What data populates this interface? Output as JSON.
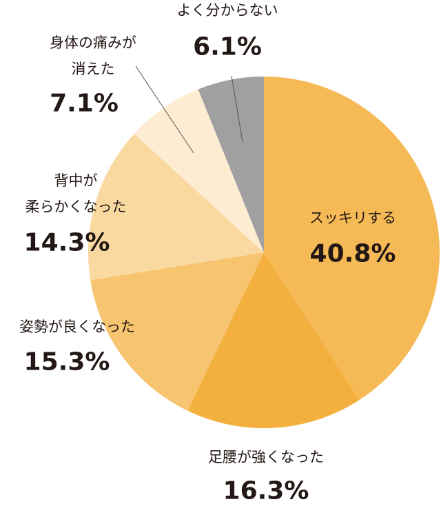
{
  "chart_data": {
    "type": "pie",
    "categories": [
      "スッキリする",
      "足腰が強くなった",
      "姿勢が良くなった",
      "背中が\n柔らかくなった",
      "身体の痛みが\n消えた",
      "よく分からない"
    ],
    "values": [
      40.8,
      16.3,
      15.3,
      14.3,
      7.1,
      6.1
    ],
    "value_labels": [
      "40.8%",
      "16.3%",
      "15.3%",
      "14.3%",
      "7.1%",
      "6.1%"
    ],
    "colors": [
      "#f5b955",
      "#f4b03f",
      "#f7c46f",
      "#fad9a1",
      "#fdecd2",
      "#a0a0a0"
    ]
  }
}
